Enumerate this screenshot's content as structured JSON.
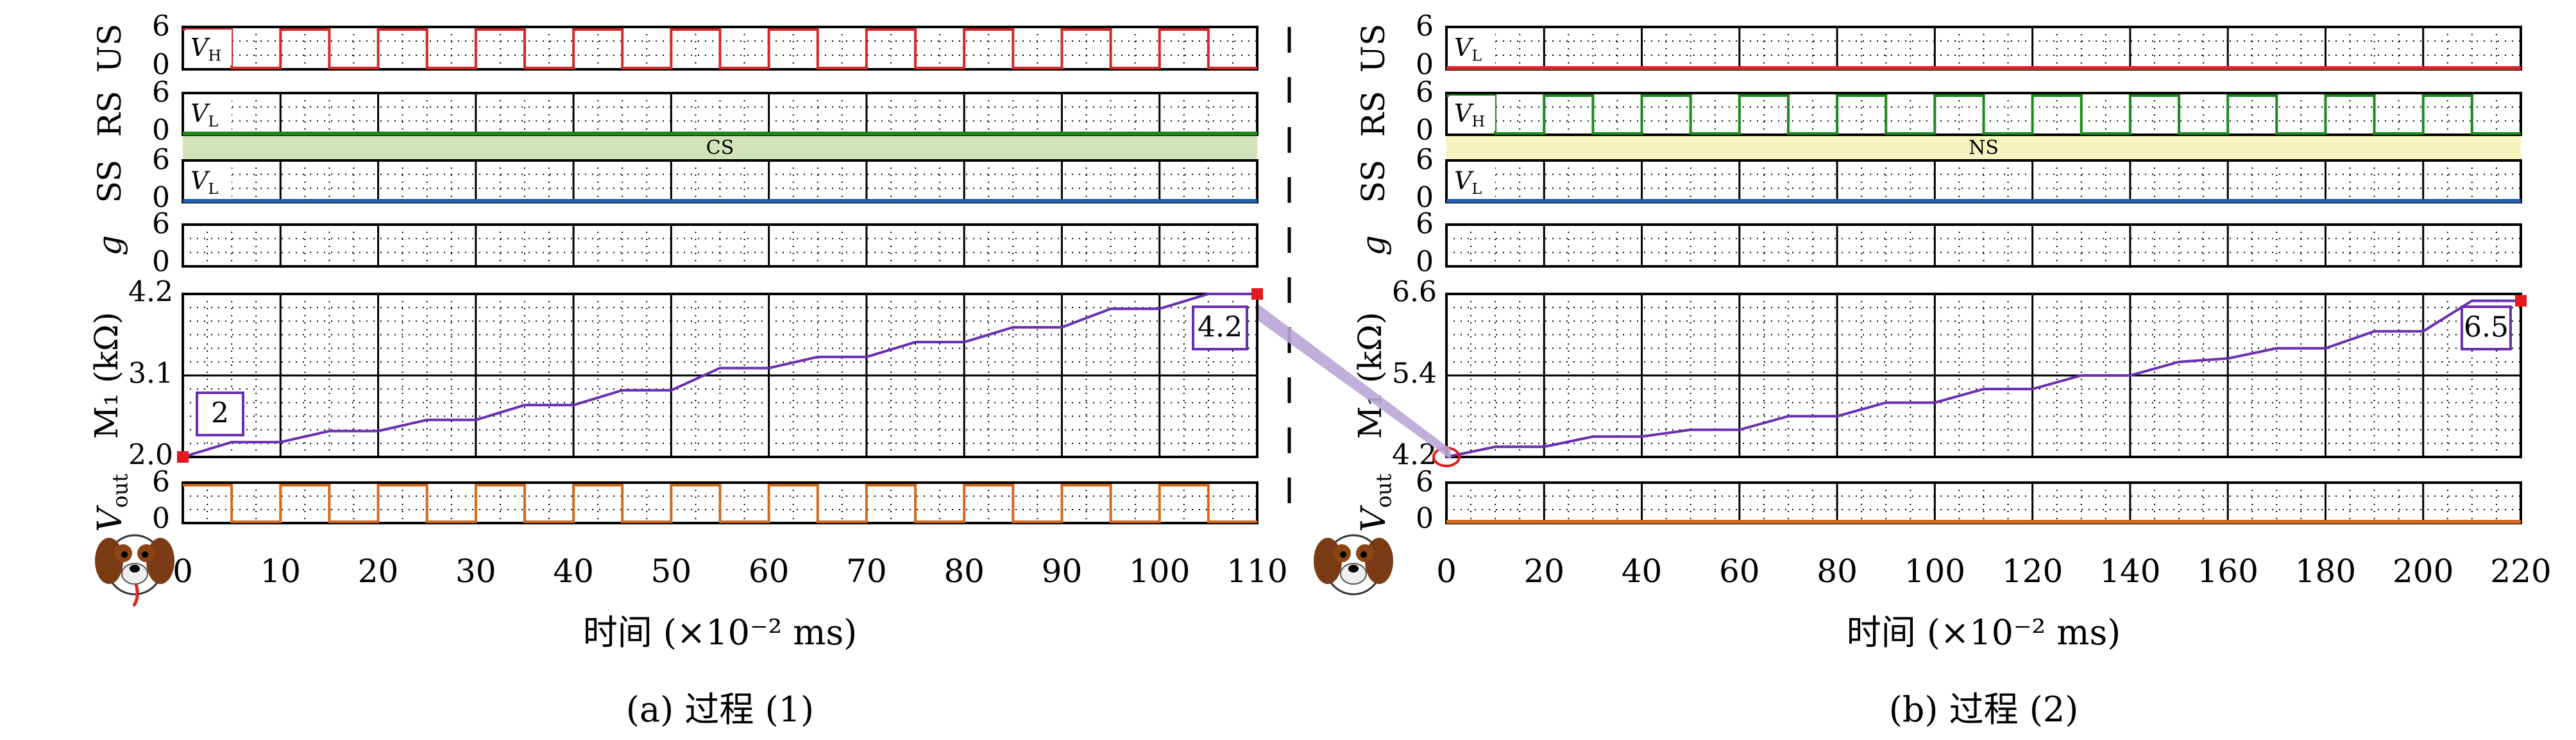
{
  "chart_data": [
    {
      "id": "a",
      "type": "line",
      "caption": "(a) 过程 (1)",
      "xlabel": "时间 (×10⁻² ms)",
      "xlim": [
        0,
        110
      ],
      "xticks": [
        "0",
        "10",
        "20",
        "30",
        "40",
        "50",
        "60",
        "70",
        "80",
        "90",
        "100",
        "110"
      ],
      "period": 10,
      "band": {
        "label": "CS",
        "color": "#d3e3b9"
      },
      "signals": [
        {
          "ylabel": "US",
          "yticks": [
            "6",
            "0"
          ],
          "series": {
            "name": "US",
            "color": "#d62728",
            "pattern": "pulse"
          },
          "tag": "V_H"
        },
        {
          "ylabel": "RS",
          "yticks": [
            "6",
            "0"
          ],
          "series": {
            "name": "RS",
            "color": "#1b8a1b",
            "pattern": "low"
          },
          "tag": "V_L"
        },
        {
          "ylabel": "SS",
          "yticks": [
            "6",
            "0"
          ],
          "series": {
            "name": "SS",
            "color": "#1f5fa8",
            "pattern": "low"
          },
          "tag": "V_L"
        },
        {
          "ylabel": "g",
          "yticks": [
            "6",
            "0"
          ],
          "series": {
            "name": "g",
            "color": "#000000",
            "pattern": "none"
          },
          "tag": ""
        },
        {
          "ylabel": "V_out",
          "yticks": [
            "6",
            "0"
          ],
          "series": {
            "name": "V_out",
            "color": "#d2691e",
            "pattern": "pulse"
          },
          "tag": ""
        }
      ],
      "memristor": {
        "ylabel": "M₁ (kΩ)",
        "yticks": [
          "4.2",
          "3.1",
          "2.0"
        ],
        "ylim": [
          2.0,
          4.2
        ],
        "color": "#6a2fb0",
        "x": [
          0,
          5,
          10,
          15,
          20,
          25,
          30,
          35,
          40,
          45,
          50,
          55,
          60,
          65,
          70,
          75,
          80,
          85,
          90,
          95,
          100,
          105,
          110
        ],
        "y": [
          2.0,
          2.2,
          2.2,
          2.35,
          2.35,
          2.5,
          2.5,
          2.7,
          2.7,
          2.9,
          2.9,
          3.2,
          3.2,
          3.35,
          3.35,
          3.55,
          3.55,
          3.75,
          3.75,
          4.0,
          4.0,
          4.2,
          4.2
        ],
        "start_label": "2",
        "end_label": "4.2"
      }
    },
    {
      "id": "b",
      "type": "line",
      "caption": "(b) 过程 (2)",
      "xlabel": "时间 (×10⁻² ms)",
      "xlim": [
        0,
        220
      ],
      "xticks": [
        "0",
        "20",
        "40",
        "60",
        "80",
        "100",
        "120",
        "140",
        "160",
        "180",
        "200",
        "220"
      ],
      "period": 20,
      "band": {
        "label": "NS",
        "color": "#f7f3bf"
      },
      "signals": [
        {
          "ylabel": "US",
          "yticks": [
            "6",
            "0"
          ],
          "series": {
            "name": "US",
            "color": "#d62728",
            "pattern": "low"
          },
          "tag": "V_L"
        },
        {
          "ylabel": "RS",
          "yticks": [
            "6",
            "0"
          ],
          "series": {
            "name": "RS",
            "color": "#1b8a1b",
            "pattern": "pulse"
          },
          "tag": "V_H"
        },
        {
          "ylabel": "SS",
          "yticks": [
            "6",
            "0"
          ],
          "series": {
            "name": "SS",
            "color": "#1f5fa8",
            "pattern": "low"
          },
          "tag": "V_L"
        },
        {
          "ylabel": "g",
          "yticks": [
            "6",
            "0"
          ],
          "series": {
            "name": "g",
            "color": "#000000",
            "pattern": "none"
          },
          "tag": ""
        },
        {
          "ylabel": "V_out",
          "yticks": [
            "6",
            "0"
          ],
          "series": {
            "name": "V_out",
            "color": "#d2691e",
            "pattern": "low"
          },
          "tag": ""
        }
      ],
      "memristor": {
        "ylabel": "M₁ (kΩ)",
        "yticks": [
          "6.6",
          "5.4",
          "4.2"
        ],
        "ylim": [
          4.2,
          6.6
        ],
        "color": "#6a2fb0",
        "x": [
          0,
          10,
          20,
          30,
          40,
          50,
          60,
          70,
          80,
          90,
          100,
          110,
          120,
          130,
          140,
          150,
          160,
          170,
          180,
          190,
          200,
          210,
          220
        ],
        "y": [
          4.2,
          4.35,
          4.35,
          4.5,
          4.5,
          4.6,
          4.6,
          4.8,
          4.8,
          5.0,
          5.0,
          5.2,
          5.2,
          5.4,
          5.4,
          5.6,
          5.65,
          5.8,
          5.8,
          6.05,
          6.05,
          6.5,
          6.5
        ],
        "start_label": "",
        "end_label": "6.5"
      }
    }
  ]
}
